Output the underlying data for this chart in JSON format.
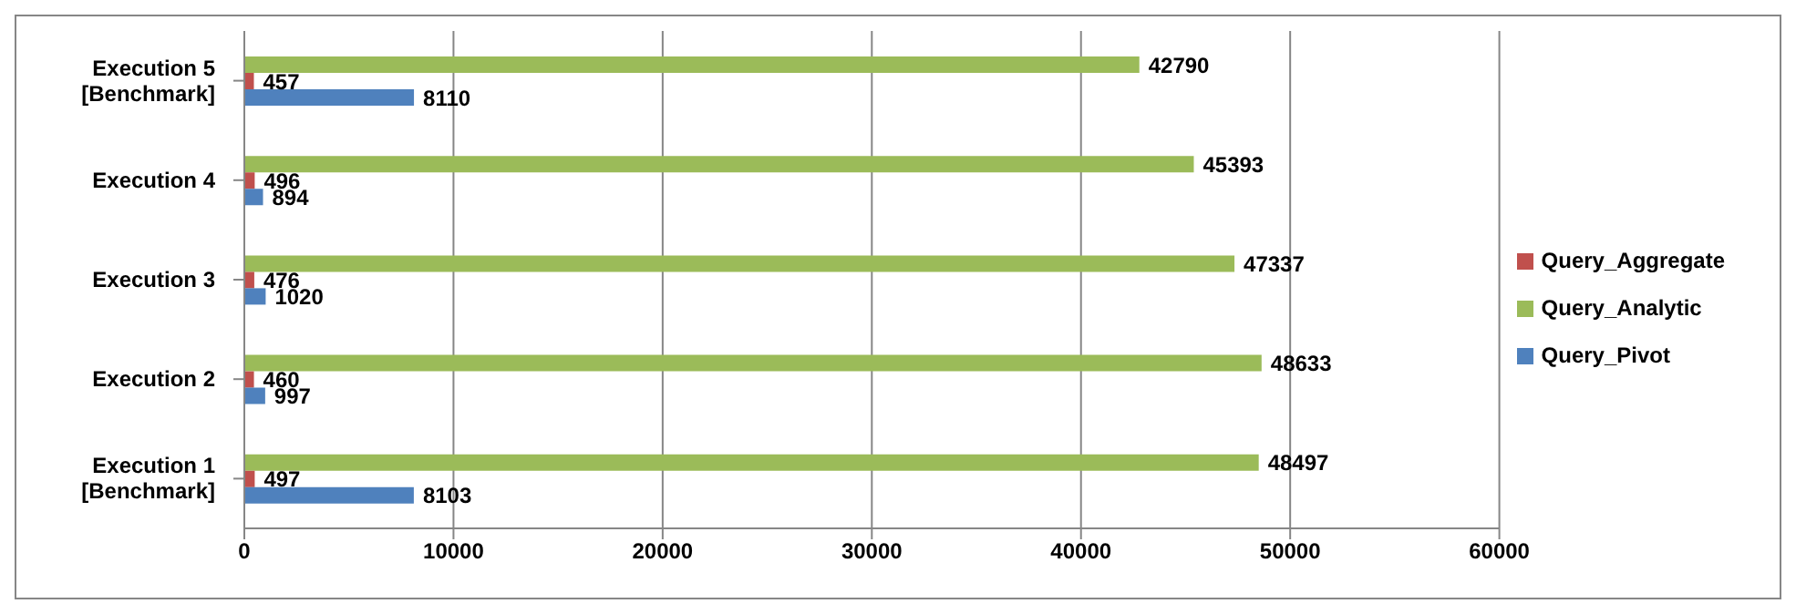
{
  "chart_data": {
    "type": "bar",
    "orientation": "horizontal",
    "categories": [
      "Execution 5 [Benchmark]",
      "Execution 4",
      "Execution 3",
      "Execution 2",
      "Execution 1 [Benchmark]"
    ],
    "series": [
      {
        "name": "Query_Analytic",
        "color": "#9bbb59",
        "values": [
          42790,
          45393,
          47337,
          48633,
          48497
        ]
      },
      {
        "name": "Query_Aggregate",
        "color": "#c0504d",
        "values": [
          457,
          496,
          476,
          460,
          497
        ]
      },
      {
        "name": "Query_Pivot",
        "color": "#4f81bd",
        "values": [
          8110,
          894,
          1020,
          997,
          8103
        ]
      }
    ],
    "xlim": [
      0,
      60000
    ],
    "xticks": [
      0,
      10000,
      20000,
      30000,
      40000,
      50000,
      60000
    ],
    "grid": "x",
    "legend": "right",
    "data_labels": true
  }
}
